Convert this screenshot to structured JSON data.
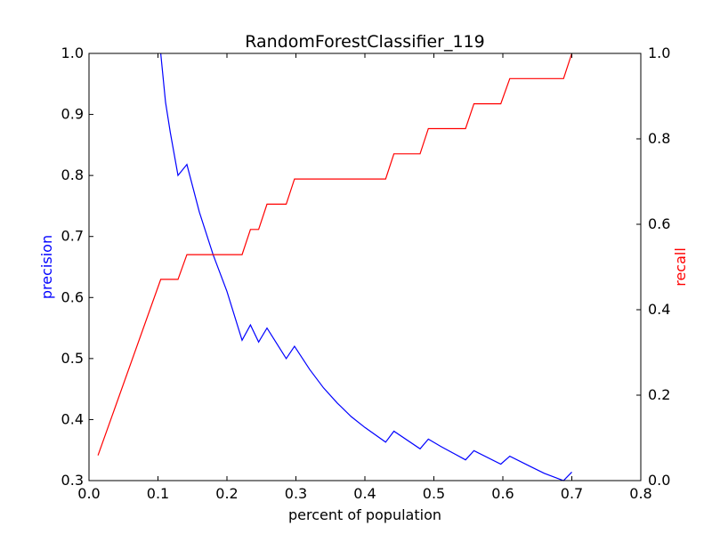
{
  "chart_data": {
    "type": "line",
    "title": "RandomForestClassifier_119",
    "xlabel": "percent of population",
    "ylabel": "precision",
    "y2label": "recall",
    "xlim": [
      0,
      0.8
    ],
    "ylim": [
      0.3,
      1.0
    ],
    "y2lim": [
      0,
      1.0
    ],
    "xticks": [
      "0.0",
      "0.1",
      "0.2",
      "0.3",
      "0.4",
      "0.5",
      "0.6",
      "0.7",
      "0.8"
    ],
    "yticks": [
      "0.3",
      "0.4",
      "0.5",
      "0.6",
      "0.7",
      "0.8",
      "0.9",
      "1.0"
    ],
    "y2ticks": [
      "0.0",
      "0.2",
      "0.4",
      "0.6",
      "0.8",
      "1.0"
    ],
    "grid": false,
    "colors": {
      "precision": "#0000ff",
      "recall": "#ff0000"
    },
    "series": [
      {
        "axis": "left",
        "color": "#0000ff",
        "points": [
          [
            0.104,
            1.0
          ],
          [
            0.111,
            0.92
          ],
          [
            0.118,
            0.87
          ],
          [
            0.129,
            0.8
          ],
          [
            0.142,
            0.818
          ],
          [
            0.16,
            0.74
          ],
          [
            0.18,
            0.67
          ],
          [
            0.2,
            0.61
          ],
          [
            0.222,
            0.53
          ],
          [
            0.234,
            0.555
          ],
          [
            0.246,
            0.527
          ],
          [
            0.258,
            0.55
          ],
          [
            0.286,
            0.5
          ],
          [
            0.298,
            0.52
          ],
          [
            0.32,
            0.482
          ],
          [
            0.34,
            0.452
          ],
          [
            0.36,
            0.427
          ],
          [
            0.38,
            0.405
          ],
          [
            0.4,
            0.387
          ],
          [
            0.43,
            0.363
          ],
          [
            0.442,
            0.381
          ],
          [
            0.48,
            0.352
          ],
          [
            0.492,
            0.368
          ],
          [
            0.51,
            0.356
          ],
          [
            0.546,
            0.334
          ],
          [
            0.558,
            0.349
          ],
          [
            0.597,
            0.327
          ],
          [
            0.61,
            0.34
          ],
          [
            0.64,
            0.323
          ],
          [
            0.66,
            0.312
          ],
          [
            0.688,
            0.3
          ],
          [
            0.7,
            0.314
          ]
        ]
      },
      {
        "axis": "right",
        "color": "#ff0000",
        "points": [
          [
            0.013,
            0.059
          ],
          [
            0.104,
            0.471
          ],
          [
            0.129,
            0.471
          ],
          [
            0.142,
            0.529
          ],
          [
            0.222,
            0.529
          ],
          [
            0.234,
            0.588
          ],
          [
            0.246,
            0.588
          ],
          [
            0.258,
            0.647
          ],
          [
            0.286,
            0.647
          ],
          [
            0.298,
            0.706
          ],
          [
            0.43,
            0.706
          ],
          [
            0.442,
            0.765
          ],
          [
            0.48,
            0.765
          ],
          [
            0.492,
            0.824
          ],
          [
            0.546,
            0.824
          ],
          [
            0.558,
            0.882
          ],
          [
            0.597,
            0.882
          ],
          [
            0.61,
            0.941
          ],
          [
            0.688,
            0.941
          ],
          [
            0.7,
            1.0
          ]
        ]
      }
    ]
  }
}
